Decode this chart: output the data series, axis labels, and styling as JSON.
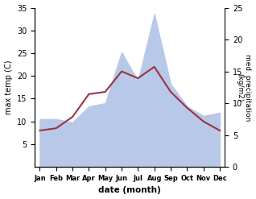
{
  "months": [
    "Jan",
    "Feb",
    "Mar",
    "Apr",
    "May",
    "Jun",
    "Jul",
    "Aug",
    "Sep",
    "Oct",
    "Nov",
    "Dec"
  ],
  "month_indices": [
    0,
    1,
    2,
    3,
    4,
    5,
    6,
    7,
    8,
    9,
    10,
    11
  ],
  "temperature": [
    8.0,
    8.5,
    11.0,
    16.0,
    16.5,
    21.0,
    19.5,
    22.0,
    16.5,
    13.0,
    10.0,
    8.0
  ],
  "precipitation": [
    7.5,
    7.5,
    7.0,
    9.5,
    10.0,
    18.0,
    13.5,
    24.0,
    13.0,
    9.5,
    8.0,
    8.5
  ],
  "temp_color": "#993344",
  "precip_color": "#b8c8e8",
  "title": "",
  "xlabel": "date (month)",
  "ylabel_left": "max temp (C)",
  "ylabel_right": "med. precipitation\n(kg/m2)",
  "ylim_left": [
    0,
    35
  ],
  "ylim_right": [
    0,
    25
  ],
  "yticks_left": [
    5,
    10,
    15,
    20,
    25,
    30,
    35
  ],
  "yticks_right": [
    0,
    5,
    10,
    15,
    20,
    25
  ],
  "bg_color": "#ffffff"
}
